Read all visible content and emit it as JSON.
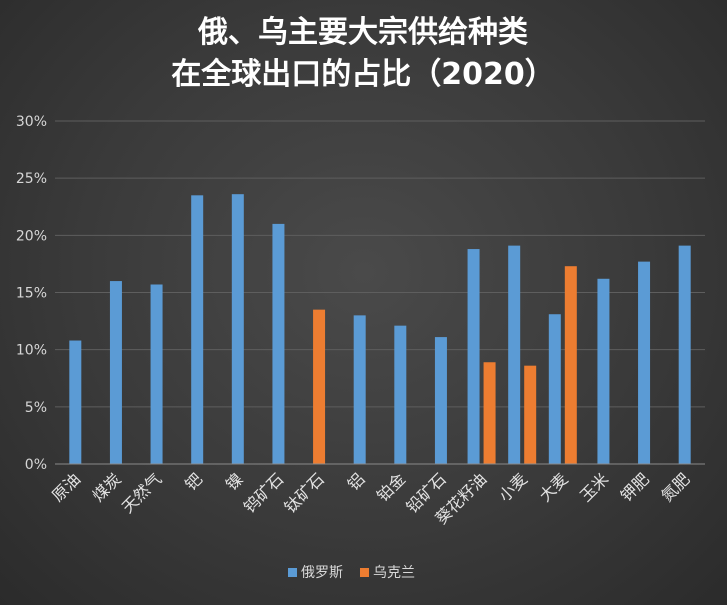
{
  "chart_data": {
    "type": "bar",
    "title_lines": [
      "俄、乌主要大宗供给种类",
      "在全球出口的占比（2020）"
    ],
    "categories": [
      "原油",
      "煤炭",
      "天然气",
      "钯",
      "镍",
      "钨矿石",
      "钛矿石",
      "铝",
      "铂金",
      "铅矿石",
      "葵花籽油",
      "小麦",
      "大麦",
      "玉米",
      "钾肥",
      "氮肥"
    ],
    "series": [
      {
        "name": "俄罗斯",
        "color": "#5b9bd5",
        "values": [
          0.108,
          0.16,
          0.157,
          0.235,
          0.236,
          0.21,
          null,
          0.13,
          0.121,
          0.111,
          0.188,
          0.191,
          0.131,
          0.162,
          0.177,
          0.191
        ]
      },
      {
        "name": "乌克兰",
        "color": "#ed7d31",
        "values": [
          null,
          null,
          null,
          null,
          null,
          null,
          0.135,
          null,
          null,
          null,
          0.089,
          0.086,
          0.173,
          null,
          null,
          null
        ]
      }
    ],
    "ylim": [
      0,
      0.3
    ],
    "yticks": [
      0,
      0.05,
      0.1,
      0.15,
      0.2,
      0.25,
      0.3
    ],
    "ytick_labels": [
      "0%",
      "5%",
      "10%",
      "15%",
      "20%",
      "25%",
      "30%"
    ],
    "grid": true,
    "legend_position": "bottom"
  }
}
